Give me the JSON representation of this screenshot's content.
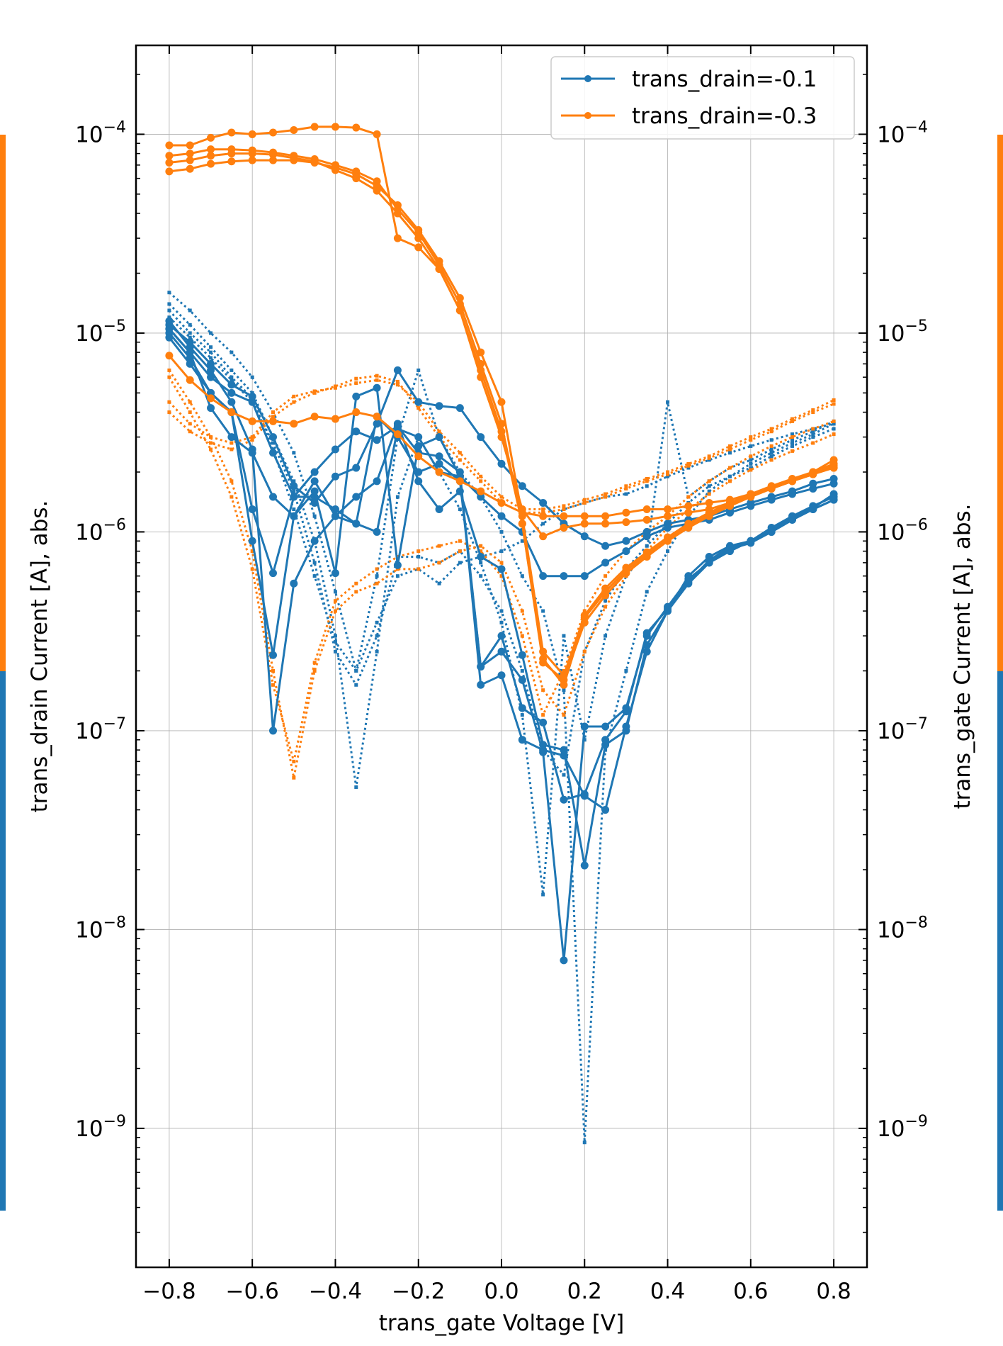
{
  "chart_data": {
    "type": "line",
    "title": "",
    "xlabel": "trans_gate Voltage [V]",
    "ylabel": "trans_drain Current [A], abs.",
    "ylabel_right": "trans_gate Current [A], abs.",
    "xlim": [
      -0.88,
      0.88
    ],
    "ylim": [
      2e-10,
      0.00028
    ],
    "yscale": "log",
    "grid": true,
    "legend_position": "top-right",
    "x_ticks": [
      "−0.8",
      "−0.6",
      "−0.4",
      "−0.2",
      "0.0",
      "0.2",
      "0.4",
      "0.6",
      "0.8"
    ],
    "x_tick_values": [
      -0.8,
      -0.6,
      -0.4,
      -0.2,
      0.0,
      0.2,
      0.4,
      0.6,
      0.8
    ],
    "y_tick_values": [
      1e-09,
      1e-08,
      1e-07,
      1e-06,
      1e-05,
      0.0001
    ],
    "y_ticks": [
      {
        "base": "10",
        "exp": "−9"
      },
      {
        "base": "10",
        "exp": "−8"
      },
      {
        "base": "10",
        "exp": "−7"
      },
      {
        "base": "10",
        "exp": "−6"
      },
      {
        "base": "10",
        "exp": "−5"
      },
      {
        "base": "10",
        "exp": "−4"
      }
    ],
    "colors": {
      "drain_0_1": "#1f77b4",
      "drain_0_3": "#ff7f0e"
    },
    "legend": [
      {
        "label": "trans_drain=-0.1",
        "color": "#1f77b4"
      },
      {
        "label": "trans_drain=-0.3",
        "color": "#ff7f0e"
      }
    ],
    "x": [
      -0.8,
      -0.75,
      -0.7,
      -0.65,
      -0.6,
      -0.55,
      -0.5,
      -0.45,
      -0.4,
      -0.35,
      -0.3,
      -0.25,
      -0.2,
      -0.15,
      -0.1,
      -0.05,
      0.0,
      0.05,
      0.1,
      0.15,
      0.2,
      0.25,
      0.3,
      0.35,
      0.4,
      0.45,
      0.5,
      0.55,
      0.6,
      0.65,
      0.7,
      0.75,
      0.8
    ],
    "series": [
      {
        "group": "trans_drain=-0.1",
        "kind": "drain",
        "color": "#1f77b4",
        "values": [
          1.1e-05,
          9e-06,
          7e-06,
          5.5e-06,
          4.8e-06,
          3e-06,
          1.7e-06,
          1.4e-06,
          1.9e-06,
          2.1e-06,
          3.5e-06,
          6.5e-06,
          4.5e-06,
          4.3e-06,
          4.2e-06,
          3e-06,
          2.2e-06,
          1.7e-06,
          1.4e-06,
          1.1e-06,
          9.5e-07,
          8.5e-07,
          9e-07,
          1e-06,
          1.1e-06,
          1.15e-06,
          1.2e-06,
          1.3e-06,
          1.4e-06,
          1.5e-06,
          1.6e-06,
          1.75e-06,
          1.85e-06
        ]
      },
      {
        "group": "trans_drain=-0.1",
        "kind": "drain",
        "color": "#1f77b4",
        "values": [
          1.05e-05,
          8e-06,
          6e-06,
          5e-06,
          4.5e-06,
          2.5e-06,
          1.5e-06,
          1.5e-06,
          1.3e-06,
          1.1e-06,
          1e-06,
          3.3e-06,
          3e-06,
          2e-06,
          1.9e-06,
          1.5e-06,
          1.2e-06,
          1e-06,
          6e-07,
          6e-07,
          6e-07,
          7e-07,
          8e-07,
          9.5e-07,
          1.05e-06,
          1.1e-06,
          1.15e-06,
          1.25e-06,
          1.35e-06,
          1.45e-06,
          1.55e-06,
          1.65e-06,
          1.75e-06
        ]
      },
      {
        "group": "trans_drain=-0.1",
        "kind": "drain",
        "color": "#1f77b4",
        "values": [
          1e-05,
          7.5e-06,
          5e-06,
          4e-06,
          1.3e-06,
          6.2e-07,
          1.5e-06,
          2e-06,
          2.6e-06,
          3.2e-06,
          2.9e-06,
          3.4e-06,
          2.5e-06,
          2.4e-06,
          2e-06,
          1.7e-07,
          1.9e-07,
          9e-08,
          8e-08,
          7.5e-08,
          4.7e-08,
          4e-08,
          1.05e-07,
          2.5e-07,
          4e-07,
          6e-07,
          7.5e-07,
          8.5e-07,
          9e-07,
          1.05e-06,
          1.2e-06,
          1.35e-06,
          1.5e-06
        ]
      },
      {
        "group": "trans_drain=-0.1",
        "kind": "drain",
        "color": "#1f77b4",
        "values": [
          9.5e-06,
          7e-06,
          5e-06,
          4e-06,
          9e-07,
          2.4e-07,
          1.2e-06,
          1.8e-06,
          1.2e-06,
          1.1e-06,
          3.8e-06,
          3e-06,
          2e-06,
          2.2e-06,
          1.8e-06,
          2.1e-07,
          2.5e-07,
          1.8e-07,
          7.8e-08,
          7e-09,
          1.05e-07,
          1.05e-07,
          1.3e-07,
          3e-07,
          4.2e-07,
          5.8e-07,
          7e-07,
          8e-07,
          9e-07,
          1e-06,
          1.15e-06,
          1.3e-06,
          1.45e-06
        ]
      },
      {
        "group": "trans_drain=-0.1",
        "kind": "drain",
        "color": "#1f77b4",
        "values": [
          1.15e-05,
          8.5e-06,
          6.5e-06,
          4.5e-06,
          2.6e-06,
          1e-07,
          5.5e-07,
          9e-07,
          1.2e-06,
          1.5e-06,
          1.8e-06,
          3.5e-06,
          1.8e-06,
          1.3e-06,
          1.6e-06,
          7.5e-07,
          6.5e-07,
          2.4e-07,
          8.5e-08,
          8e-08,
          2.1e-08,
          8.5e-08,
          1e-07,
          2.7e-07,
          4e-07,
          5.5e-07,
          7e-07,
          8.2e-07,
          8.8e-07,
          1e-06,
          1.15e-06,
          1.3e-06,
          1.45e-06
        ]
      },
      {
        "group": "trans_drain=-0.1",
        "kind": "drain",
        "color": "#1f77b4",
        "values": [
          1.05e-05,
          8e-06,
          4.2e-06,
          3e-06,
          2.5e-06,
          1.5e-06,
          1.2e-06,
          1.6e-06,
          6.2e-07,
          4.8e-06,
          5.3e-06,
          6.8e-07,
          2.7e-06,
          3e-06,
          1.9e-06,
          2.1e-07,
          3e-07,
          1.3e-07,
          1.1e-07,
          4.5e-08,
          4.8e-08,
          9e-08,
          1.25e-07,
          3.1e-07,
          4.1e-07,
          5.6e-07,
          7.2e-07,
          8.4e-07,
          9e-07,
          1.02e-06,
          1.18e-06,
          1.32e-06,
          1.55e-06
        ]
      },
      {
        "group": "trans_drain=-0.3",
        "kind": "drain",
        "color": "#ff7f0e",
        "values": [
          8.8e-05,
          8.8e-05,
          9.6e-05,
          0.000102,
          0.0001,
          0.000102,
          0.000105,
          0.000109,
          0.000109,
          0.000108,
          0.0001,
          3e-05,
          2.7e-05,
          2.1e-05,
          1.3e-05,
          6e-06,
          3e-06,
          1.3e-06,
          9.5e-07,
          1.05e-06,
          1.1e-06,
          1.1e-06,
          1.12e-06,
          1.15e-06,
          1.2e-06,
          1.25e-06,
          1.3e-06,
          1.4e-06,
          1.5e-06,
          1.65e-06,
          1.8e-06,
          2e-06,
          2.3e-06
        ]
      },
      {
        "group": "trans_drain=-0.3",
        "kind": "drain",
        "color": "#ff7f0e",
        "values": [
          7.8e-05,
          8e-05,
          8.4e-05,
          8.4e-05,
          8.3e-05,
          8.1e-05,
          7.8e-05,
          7.5e-05,
          7e-05,
          6.5e-05,
          5.8e-05,
          4.2e-05,
          3.2e-05,
          2.2e-05,
          1.4e-05,
          7e-06,
          3.5e-06,
          1.1e-06,
          2.2e-07,
          1.8e-07,
          3.5e-07,
          4.8e-07,
          6.2e-07,
          7.5e-07,
          9e-07,
          1.05e-06,
          1.2e-06,
          1.35e-06,
          1.5e-06,
          1.65e-06,
          1.8e-06,
          1.95e-06,
          2.15e-06
        ]
      },
      {
        "group": "trans_drain=-0.3",
        "kind": "drain",
        "color": "#ff7f0e",
        "values": [
          7.2e-05,
          7.4e-05,
          7.8e-05,
          8e-05,
          8e-05,
          7.9e-05,
          7.6e-05,
          7.3e-05,
          6.6e-05,
          6e-05,
          5.2e-05,
          4e-05,
          3e-05,
          2.1e-05,
          1.3e-05,
          6.5e-06,
          3.2e-06,
          1.1e-06,
          2.3e-07,
          1.7e-07,
          3.7e-07,
          5e-07,
          6.4e-07,
          7.7e-07,
          9.2e-07,
          1.07e-06,
          1.22e-06,
          1.37e-06,
          1.52e-06,
          1.67e-06,
          1.82e-06,
          1.97e-06,
          2.1e-06
        ]
      },
      {
        "group": "trans_drain=-0.3",
        "kind": "drain",
        "color": "#ff7f0e",
        "values": [
          6.5e-05,
          6.7e-05,
          7.1e-05,
          7.3e-05,
          7.4e-05,
          7.4e-05,
          7.4e-05,
          7.2e-05,
          6.8e-05,
          6.3e-05,
          5.5e-05,
          4.4e-05,
          3.3e-05,
          2.3e-05,
          1.5e-05,
          8e-06,
          4.5e-06,
          1.2e-06,
          2.5e-07,
          1.9e-07,
          3.8e-07,
          5.2e-07,
          6.6e-07,
          7.9e-07,
          9.4e-07,
          1.1e-06,
          1.25e-06,
          1.4e-06,
          1.55e-06,
          1.7e-06,
          1.85e-06,
          2e-06,
          2.2e-06
        ]
      },
      {
        "group": "trans_drain=-0.3",
        "kind": "drain",
        "color": "#ff7f0e",
        "values": [
          7.7e-06,
          5.8e-06,
          4.7e-06,
          4e-06,
          3.6e-06,
          3.6e-06,
          3.5e-06,
          3.8e-06,
          3.7e-06,
          4e-06,
          3.8e-06,
          3.1e-06,
          2.4e-06,
          2e-06,
          1.8e-06,
          1.6e-06,
          1.4e-06,
          1.25e-06,
          1.2e-06,
          1.2e-06,
          1.2e-06,
          1.2e-06,
          1.25e-06,
          1.3e-06,
          1.3e-06,
          1.35e-06,
          1.4e-06,
          1.45e-06,
          1.55e-06,
          1.65e-06,
          1.8e-06,
          1.95e-06,
          2.1e-06
        ]
      },
      {
        "group": "trans_drain=-0.1",
        "kind": "gate",
        "color": "#1f77b4",
        "values": [
          1.6e-05,
          1.3e-05,
          1e-05,
          8e-06,
          6e-06,
          4e-06,
          2.5e-06,
          1.2e-06,
          5e-07,
          2e-07,
          6e-07,
          3e-06,
          6.5e-06,
          3e-06,
          2e-06,
          1.5e-06,
          1e-06,
          6e-07,
          4e-07,
          1.6e-07,
          8.5e-10,
          8e-08,
          2e-07,
          5e-07,
          8e-07,
          1.2e-06,
          1.6e-06,
          1.9e-06,
          2.2e-06,
          2.5e-06,
          2.8e-06,
          3.1e-06,
          3.5e-06
        ]
      },
      {
        "group": "trans_drain=-0.1",
        "kind": "gate",
        "color": "#1f77b4",
        "values": [
          1.4e-05,
          1.1e-05,
          8.5e-06,
          6.5e-06,
          5e-06,
          3e-06,
          1.8e-06,
          9e-07,
          3e-07,
          5.2e-08,
          2.5e-07,
          1.5e-06,
          3e-06,
          2e-06,
          1.3e-06,
          7e-07,
          3.5e-07,
          1.2e-07,
          1.5e-08,
          3e-07,
          9e-08,
          3e-07,
          6e-07,
          8e-07,
          4.5e-06,
          1.5e-06,
          1.8e-06,
          2.1e-06,
          2.3e-06,
          2.6e-06,
          2.9e-06,
          3.2e-06,
          3.6e-06
        ]
      },
      {
        "group": "trans_drain=-0.1",
        "kind": "gate",
        "color": "#1f77b4",
        "values": [
          1.2e-05,
          9.5e-06,
          7.5e-06,
          5.8e-06,
          4.5e-06,
          2.8e-06,
          1.6e-06,
          7e-07,
          2.5e-07,
          1.7e-07,
          3e-07,
          7.5e-07,
          7.5e-07,
          7e-07,
          8e-07,
          6e-07,
          4e-07,
          2e-07,
          8e-08,
          6e-08,
          2.5e-07,
          4.5e-07,
          6.5e-07,
          8.5e-07,
          1.1e-06,
          1.4e-06,
          1.7e-06,
          1.9e-06,
          2.1e-06,
          2.4e-06,
          2.7e-06,
          3e-06,
          3.3e-06
        ]
      },
      {
        "group": "trans_drain=-0.1",
        "kind": "gate",
        "color": "#1f77b4",
        "values": [
          1.3e-05,
          1e-05,
          8e-06,
          6e-06,
          4.7e-06,
          2.6e-06,
          1.3e-06,
          6e-07,
          2.8e-07,
          2e-07,
          3.5e-07,
          6e-07,
          6.5e-07,
          5.5e-07,
          7e-07,
          7.5e-07,
          8e-07,
          9e-07,
          1.1e-06,
          1.3e-06,
          1.4e-06,
          1.5e-06,
          1.55e-06,
          1.7e-06,
          1.9e-06,
          2.1e-06,
          2.3e-06,
          2.5e-06,
          2.7e-06,
          2.9e-06,
          3.1e-06,
          3.3e-06,
          3.5e-06
        ]
      },
      {
        "group": "trans_drain=-0.3",
        "kind": "gate",
        "color": "#ff7f0e",
        "values": [
          6.5e-06,
          4.5e-06,
          3e-06,
          1.8e-06,
          8e-07,
          2e-07,
          5.8e-08,
          2e-07,
          4e-07,
          5e-07,
          5.5e-07,
          6.5e-07,
          6.5e-07,
          7e-07,
          8e-07,
          8.5e-07,
          7e-07,
          4e-07,
          1.6e-07,
          1.2e-07,
          2.5e-07,
          4.2e-07,
          6e-07,
          8e-07,
          1.05e-06,
          1.3e-06,
          1.55e-06,
          1.8e-06,
          2.05e-06,
          2.3e-06,
          2.55e-06,
          2.8e-06,
          3.1e-06
        ]
      },
      {
        "group": "trans_drain=-0.3",
        "kind": "gate",
        "color": "#ff7f0e",
        "values": [
          6e-06,
          4e-06,
          2.6e-06,
          1.5e-06,
          6.5e-07,
          1.7e-07,
          7e-08,
          2.2e-07,
          4.5e-07,
          5.5e-07,
          6.5e-07,
          7.5e-07,
          8e-07,
          8.5e-07,
          9e-07,
          8e-07,
          6e-07,
          3e-07,
          1.2e-07,
          2e-07,
          4e-07,
          6e-07,
          8e-07,
          1e-06,
          1.2e-06,
          1.5e-06,
          1.8e-06,
          2.1e-06,
          2.4e-06,
          2.7e-06,
          3e-06,
          3.3e-06,
          3.6e-06
        ]
      },
      {
        "group": "trans_drain=-0.3",
        "kind": "gate",
        "color": "#ff7f0e",
        "values": [
          4.5e-06,
          3.5e-06,
          3e-06,
          2.8e-06,
          3e-06,
          4e-06,
          4.8e-06,
          5.1e-06,
          5.3e-06,
          5.6e-06,
          5.8e-06,
          5.5e-06,
          4.5e-06,
          3.2e-06,
          2.5e-06,
          1.9e-06,
          1.5e-06,
          1.3e-06,
          1.3e-06,
          1.35e-06,
          1.45e-06,
          1.55e-06,
          1.7e-06,
          1.85e-06,
          2e-06,
          2.2e-06,
          2.4e-06,
          2.7e-06,
          3e-06,
          3.3e-06,
          3.7e-06,
          4.1e-06,
          4.6e-06
        ]
      },
      {
        "group": "trans_drain=-0.3",
        "kind": "gate",
        "color": "#ff7f0e",
        "values": [
          4e-06,
          3.2e-06,
          2.8e-06,
          2.6e-06,
          2.9e-06,
          3.8e-06,
          4.5e-06,
          5e-06,
          5.4e-06,
          5.9e-06,
          6.1e-06,
          5.7e-06,
          4.2e-06,
          3e-06,
          2.3e-06,
          1.8e-06,
          1.4e-06,
          1.25e-06,
          1.25e-06,
          1.3e-06,
          1.4e-06,
          1.5e-06,
          1.65e-06,
          1.8e-06,
          1.95e-06,
          2.15e-06,
          2.35e-06,
          2.6e-06,
          2.9e-06,
          3.2e-06,
          3.6e-06,
          4e-06,
          4.4e-06
        ]
      }
    ]
  }
}
